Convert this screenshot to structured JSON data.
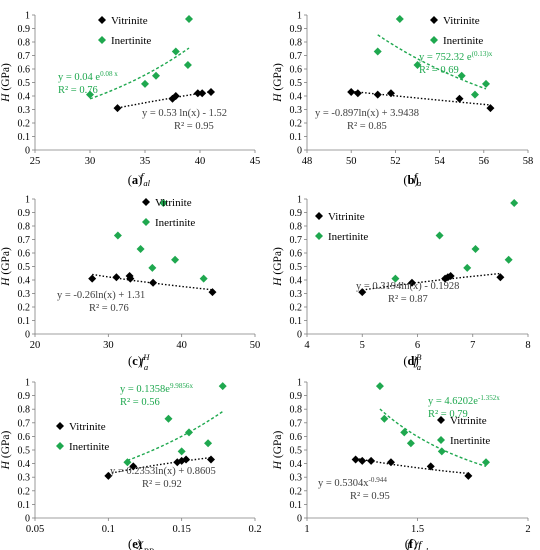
{
  "figure": {
    "colors": {
      "vitrinite": "#000000",
      "inertinite": "#1fa84f",
      "vit_fit": "#000000",
      "ine_fit": "#1fa84f",
      "axis": "#7f7f7f",
      "text": "#000000"
    }
  },
  "chart_data": [
    {
      "type": "scatter",
      "panel_label": "(a)",
      "xlabel": "f_al",
      "ylabel": "H (GPa)",
      "xlim": [
        25,
        45
      ],
      "ylim": [
        0,
        1
      ],
      "xticks": [
        "25",
        "30",
        "35",
        "40",
        "45"
      ],
      "yticks": [
        "0",
        "0.1",
        "0.2",
        "0.3",
        "0.4",
        "0.5",
        "0.6",
        "0.7",
        "0.8",
        "0.9",
        "1"
      ],
      "legend": {
        "position": "top-left",
        "entries": [
          "Vitrinite",
          "Inertinite"
        ]
      },
      "series": [
        {
          "name": "Vitrinite",
          "x": [
            32.5,
            37.5,
            37.8,
            39.8,
            40.2,
            41.0
          ],
          "y": [
            0.31,
            0.38,
            0.4,
            0.42,
            0.42,
            0.43
          ]
        },
        {
          "name": "Inertinite",
          "x": [
            30.0,
            35.0,
            36.0,
            37.8,
            38.9,
            39.0
          ],
          "y": [
            0.41,
            0.49,
            0.55,
            0.73,
            0.63,
            0.97
          ]
        }
      ],
      "fits": [
        {
          "series": "Inertinite",
          "type": "exponential",
          "equation": "y = 0.04 e^{0.08 x}",
          "r2": "R² = 0.76"
        },
        {
          "series": "Vitrinite",
          "type": "log",
          "equation": "y = 0.53 ln(x) - 1.52",
          "r2": "R² = 0.95"
        }
      ]
    },
    {
      "type": "scatter",
      "panel_label": "(b)",
      "xlabel": "f_a",
      "ylabel": "H (GPa)",
      "xlim": [
        48,
        58
      ],
      "ylim": [
        0,
        1
      ],
      "xticks": [
        "48",
        "50",
        "52",
        "54",
        "56",
        "58"
      ],
      "yticks": [
        "0",
        "0.1",
        "0.2",
        "0.3",
        "0.4",
        "0.5",
        "0.6",
        "0.7",
        "0.8",
        "0.9",
        "1"
      ],
      "legend": {
        "position": "top-right",
        "entries": [
          "Vitrinite",
          "Inertinite"
        ]
      },
      "series": [
        {
          "name": "Vitrinite",
          "x": [
            50.0,
            50.3,
            51.2,
            51.8,
            54.9,
            56.3
          ],
          "y": [
            0.43,
            0.42,
            0.41,
            0.42,
            0.38,
            0.31
          ]
        },
        {
          "name": "Inertinite",
          "x": [
            51.2,
            52.2,
            53.0,
            55.0,
            55.6,
            56.1
          ],
          "y": [
            0.73,
            0.97,
            0.63,
            0.55,
            0.41,
            0.49
          ]
        }
      ],
      "fits": [
        {
          "series": "Inertinite",
          "type": "exponential",
          "equation": "y = 752.32 e^{(0.13)x}",
          "r2": "R² = 0.69"
        },
        {
          "series": "Vitrinite",
          "type": "log",
          "equation": "y = -0.897ln(x) + 3.9438",
          "r2": "R² = 0.85"
        }
      ]
    },
    {
      "type": "scatter",
      "panel_label": "(c)",
      "xlabel": "f_a^H",
      "ylabel": "H (GPa)",
      "xlim": [
        20,
        50
      ],
      "ylim": [
        0,
        1
      ],
      "xticks": [
        "20",
        "30",
        "40",
        "50"
      ],
      "yticks": [
        "0",
        "0.1",
        "0.2",
        "0.3",
        "0.4",
        "0.5",
        "0.6",
        "0.7",
        "0.8",
        "0.9",
        "1"
      ],
      "legend": {
        "position": "top-right",
        "entries": [
          "Vitrinite",
          "Inertinite"
        ]
      },
      "series": [
        {
          "name": "Vitrinite",
          "x": [
            27.8,
            31.1,
            32.9,
            33.0,
            36.1,
            44.2
          ],
          "y": [
            0.41,
            0.42,
            0.43,
            0.41,
            0.38,
            0.31
          ]
        },
        {
          "name": "Inertinite",
          "x": [
            31.3,
            34.4,
            36.0,
            37.5,
            39.1,
            43.0
          ],
          "y": [
            0.73,
            0.63,
            0.49,
            0.97,
            0.55,
            0.41
          ]
        }
      ],
      "fits": [
        {
          "series": "Vitrinite",
          "type": "log",
          "equation": "y = -0.26ln(x) + 1.31",
          "r2": "R² = 0.76"
        }
      ]
    },
    {
      "type": "scatter",
      "panel_label": "(d)",
      "xlabel": "f_a^B",
      "ylabel": "H (GPa)",
      "xlim": [
        4,
        8
      ],
      "ylim": [
        0,
        1
      ],
      "xticks": [
        "4",
        "5",
        "6",
        "7",
        "8"
      ],
      "yticks": [
        "0",
        "0.1",
        "0.2",
        "0.3",
        "0.4",
        "0.5",
        "0.6",
        "0.7",
        "0.8",
        "0.9",
        "1"
      ],
      "legend": {
        "position": "top-left",
        "entries": [
          "Vitrinite",
          "Inertinite"
        ]
      },
      "series": [
        {
          "name": "Vitrinite",
          "x": [
            5.0,
            5.9,
            6.5,
            6.55,
            6.6,
            7.5
          ],
          "y": [
            0.31,
            0.38,
            0.41,
            0.42,
            0.43,
            0.42
          ]
        },
        {
          "name": "Inertinite",
          "x": [
            5.6,
            6.4,
            6.9,
            7.05,
            7.65,
            7.75
          ],
          "y": [
            0.41,
            0.73,
            0.49,
            0.63,
            0.55,
            0.97
          ]
        }
      ],
      "fits": [
        {
          "series": "Vitrinite",
          "type": "log",
          "equation": "y = 0.3194ln(x) - 0.1928",
          "r2": "R² = 0.87"
        }
      ]
    },
    {
      "type": "scatter",
      "panel_label": "(e)",
      "xlabel": "X_BP",
      "ylabel": "H (GPa)",
      "xlim": [
        0.05,
        0.2
      ],
      "ylim": [
        0,
        1
      ],
      "xticks": [
        "0.05",
        "0.1",
        "0.15",
        "0.2"
      ],
      "yticks": [
        "0",
        "0.1",
        "0.2",
        "0.3",
        "0.4",
        "0.5",
        "0.6",
        "0.7",
        "0.8",
        "0.9",
        "1"
      ],
      "legend": {
        "position": "left",
        "entries": [
          "Vitrinite",
          "Inertinite"
        ]
      },
      "series": [
        {
          "name": "Vitrinite",
          "x": [
            0.1,
            0.117,
            0.147,
            0.15,
            0.153,
            0.17
          ],
          "y": [
            0.31,
            0.38,
            0.41,
            0.42,
            0.43,
            0.43
          ]
        },
        {
          "name": "Inertinite",
          "x": [
            0.113,
            0.141,
            0.15,
            0.155,
            0.168,
            0.178
          ],
          "y": [
            0.41,
            0.73,
            0.49,
            0.63,
            0.55,
            0.97
          ]
        }
      ],
      "fits": [
        {
          "series": "Inertinite",
          "type": "exponential",
          "equation": "y = 0.1358e^{9.9856x}",
          "r2": "R² = 0.56"
        },
        {
          "series": "Vitrinite",
          "type": "log",
          "equation": "y = 0.2353ln(x) + 0.8605",
          "r2": "R² = 0.92"
        }
      ]
    },
    {
      "type": "scatter",
      "panel_label": "(f)",
      "xlabel": "f_a/f_al",
      "ylabel": "H (GPa)",
      "xlim": [
        1,
        2
      ],
      "ylim": [
        0,
        1
      ],
      "xticks": [
        "1",
        "1.5",
        "2"
      ],
      "yticks": [
        "0",
        "0.1",
        "0.2",
        "0.3",
        "0.4",
        "0.5",
        "0.6",
        "0.7",
        "0.8",
        "0.9",
        "1"
      ],
      "legend": {
        "position": "right",
        "entries": [
          "Vitrinite",
          "Inertinite"
        ]
      },
      "series": [
        {
          "name": "Vitrinite",
          "x": [
            1.22,
            1.25,
            1.29,
            1.38,
            1.56,
            1.73
          ],
          "y": [
            0.43,
            0.42,
            0.42,
            0.41,
            0.38,
            0.31
          ]
        },
        {
          "name": "Inertinite",
          "x": [
            1.33,
            1.35,
            1.44,
            1.47,
            1.61,
            1.81
          ],
          "y": [
            0.97,
            0.73,
            0.63,
            0.55,
            0.49,
            0.41
          ]
        }
      ],
      "fits": [
        {
          "series": "Inertinite",
          "type": "power",
          "equation": "y = 4.6202e^{-1.352x}",
          "r2": "R² = 0.79"
        },
        {
          "series": "Vitrinite",
          "type": "power",
          "equation": "y = 0.5304x^{-0.944}",
          "r2": "R² = 0.95"
        }
      ]
    }
  ]
}
